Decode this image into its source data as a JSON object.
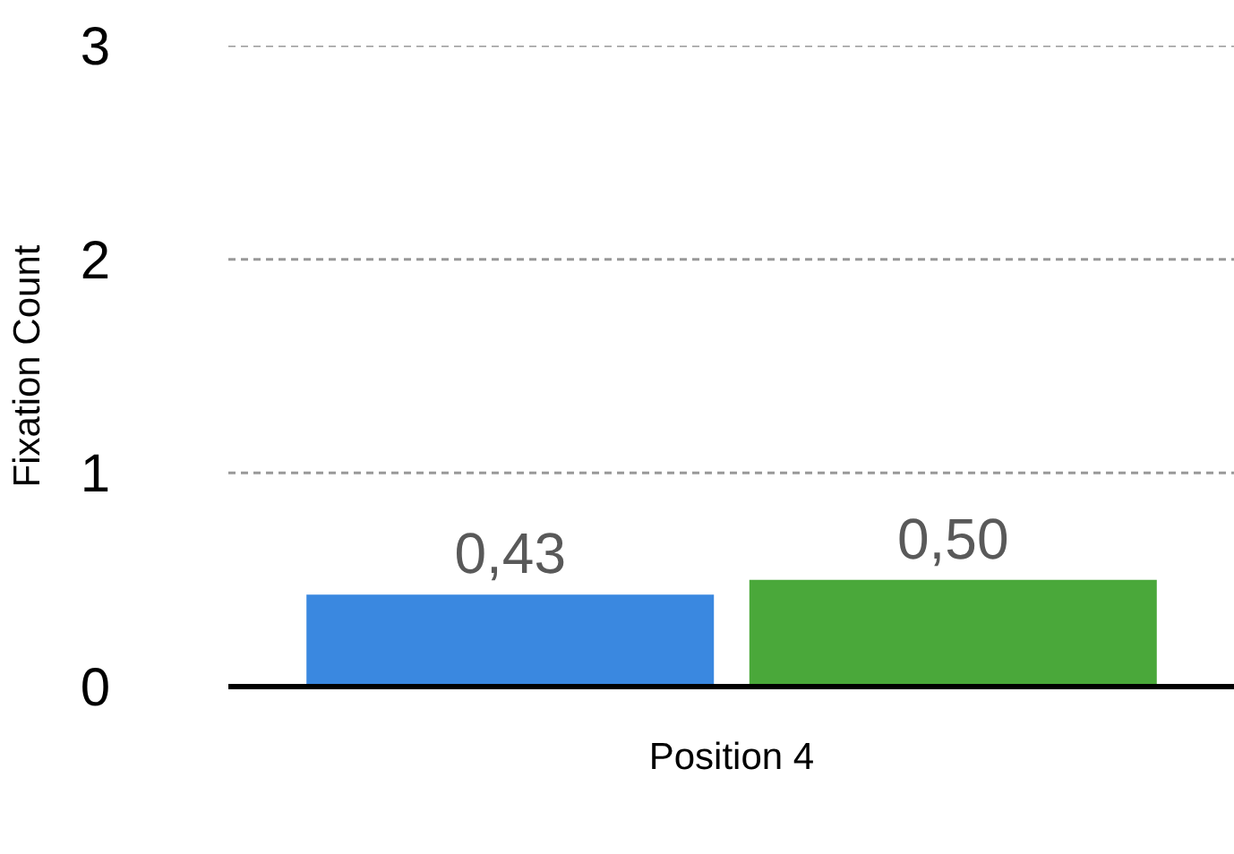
{
  "chart_data": {
    "type": "bar",
    "ylabel": "Fixation Count",
    "categories": [
      "Position 4"
    ],
    "series": [
      {
        "color": "#3a88e0",
        "values": [
          0.43
        ],
        "value_labels": [
          "0,43"
        ]
      },
      {
        "color": "#4aa83a",
        "values": [
          0.5
        ],
        "value_labels": [
          "0,50"
        ]
      }
    ],
    "ylim": [
      0,
      3
    ],
    "yticks": [
      0,
      1,
      2,
      3
    ],
    "grid": "y"
  }
}
